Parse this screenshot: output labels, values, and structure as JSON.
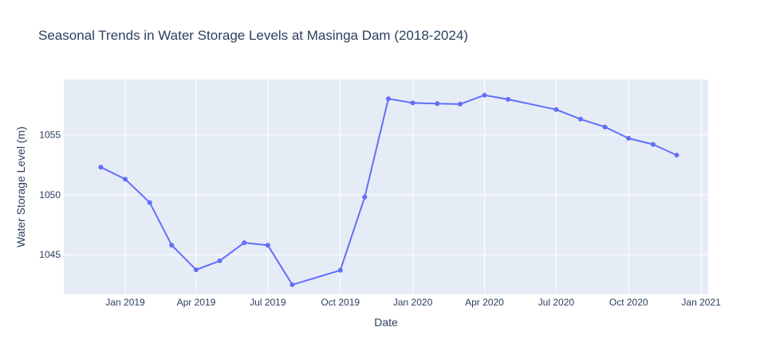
{
  "chart_data": {
    "type": "line",
    "title": "Seasonal Trends in Water Storage Levels at Masinga Dam (2018-2024)",
    "xlabel": "Date",
    "ylabel": "Water Storage Level (m)",
    "x_range": [
      "2018-10-15",
      "2021-01-10"
    ],
    "ylim": [
      1041.7,
      1059.6
    ],
    "x_tick_values": [
      "2019-01-01",
      "2019-04-01",
      "2019-07-01",
      "2019-10-01",
      "2020-01-01",
      "2020-04-01",
      "2020-07-01",
      "2020-10-01",
      "2021-01-01"
    ],
    "x_tick_labels": [
      "Jan 2019",
      "Apr 2019",
      "Jul 2019",
      "Oct 2019",
      "Jan 2020",
      "Apr 2020",
      "Jul 2020",
      "Oct 2020",
      "Jan 2021"
    ],
    "y_ticks": [
      1045,
      1050,
      1055
    ],
    "y_tick_labels": [
      "1045",
      "1050",
      "1055"
    ],
    "grid": true,
    "legend": "none",
    "colors": {
      "series": "#636efa",
      "plot_background": "#E5ECF6",
      "grid": "#ffffff",
      "text": "#2a3f5f"
    },
    "series": [
      {
        "mode": "lines+markers",
        "x": [
          "2018-12-01",
          "2019-01-01",
          "2019-02-01",
          "2019-03-01",
          "2019-04-01",
          "2019-05-01",
          "2019-06-01",
          "2019-07-01",
          "2019-08-01",
          "2019-10-01",
          "2019-11-01",
          "2019-12-01",
          "2020-01-01",
          "2020-02-01",
          "2020-03-01",
          "2020-04-01",
          "2020-05-01",
          "2020-07-01",
          "2020-08-01",
          "2020-09-01",
          "2020-10-01",
          "2020-11-01",
          "2020-12-01"
        ],
        "y": [
          1052.3,
          1051.3,
          1049.35,
          1045.8,
          1043.75,
          1044.5,
          1046.0,
          1045.8,
          1042.5,
          1043.7,
          1049.8,
          1058.0,
          1057.65,
          1057.6,
          1057.55,
          1058.3,
          1057.95,
          1057.1,
          1056.3,
          1055.65,
          1054.7,
          1054.2,
          1053.3
        ]
      }
    ]
  }
}
